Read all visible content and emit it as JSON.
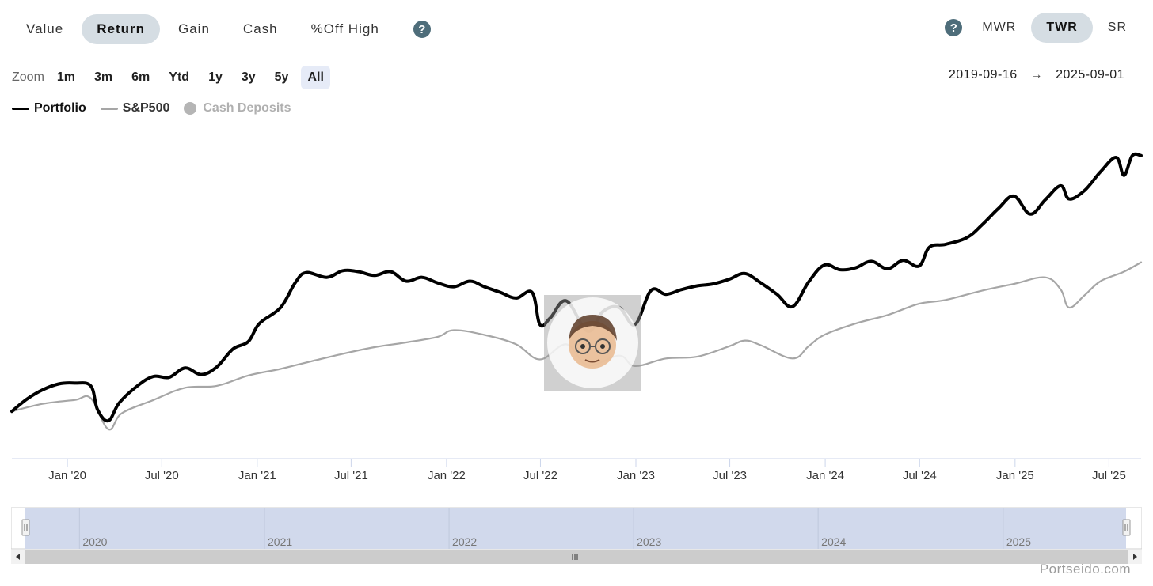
{
  "tabs": [
    "Value",
    "Return",
    "Gain",
    "Cash",
    "%Off High"
  ],
  "active_tab": "Return",
  "methods": [
    "MWR",
    "TWR",
    "SR"
  ],
  "active_method": "TWR",
  "zoom": {
    "label": "Zoom",
    "options": [
      "1m",
      "3m",
      "6m",
      "Ytd",
      "1y",
      "3y",
      "5y",
      "All"
    ],
    "active": "All"
  },
  "range": {
    "from": "2019-09-16",
    "arrow": "→",
    "to": "2025-09-01"
  },
  "legend": {
    "portfolio": "Portfolio",
    "sp500": "S&P500",
    "cash": "Cash Deposits"
  },
  "colors": {
    "portfolio": "#000000",
    "sp500": "#a6a6a6",
    "cash_disabled": "#b5b5b5",
    "axis": "#ccd6eb",
    "navigator_fill": "#d1d9ec"
  },
  "brand": "Portseido.com",
  "chart_data": {
    "type": "line",
    "x_axis_type": "date",
    "x_ticks": [
      "Jan '20",
      "Jul '20",
      "Jan '21",
      "Jul '21",
      "Jan '22",
      "Jul '22",
      "Jan '23",
      "Jul '23",
      "Jan '24",
      "Jul '24",
      "Jan '25",
      "Jul '25"
    ],
    "x_tick_dates": [
      "2020-01-01",
      "2020-07-01",
      "2021-01-01",
      "2021-07-01",
      "2022-01-01",
      "2022-07-01",
      "2023-01-01",
      "2023-07-01",
      "2024-01-01",
      "2024-07-01",
      "2025-01-01",
      "2025-07-01"
    ],
    "navigator_ticks": [
      "2020",
      "2021",
      "2022",
      "2023",
      "2024",
      "2025"
    ],
    "navigator_tick_dates": [
      "2020-01-01",
      "2021-01-01",
      "2022-01-01",
      "2023-01-01",
      "2024-01-01",
      "2025-01-01"
    ],
    "x_range": [
      "2019-09-16",
      "2025-09-01"
    ],
    "y_axis_labels": "none",
    "series": [
      {
        "name": "Portfolio",
        "points": [
          [
            "2019-09-16",
            0.0
          ],
          [
            "2019-10-15",
            1.3
          ],
          [
            "2019-11-15",
            2.3
          ],
          [
            "2019-12-15",
            2.9
          ],
          [
            "2020-01-15",
            3.0
          ],
          [
            "2020-02-15",
            2.7
          ],
          [
            "2020-02-28",
            0.2
          ],
          [
            "2020-03-20",
            -1.0
          ],
          [
            "2020-04-10",
            0.9
          ],
          [
            "2020-05-15",
            2.7
          ],
          [
            "2020-06-15",
            3.7
          ],
          [
            "2020-07-15",
            3.6
          ],
          [
            "2020-08-15",
            4.6
          ],
          [
            "2020-09-15",
            3.9
          ],
          [
            "2020-10-15",
            4.7
          ],
          [
            "2020-11-15",
            6.6
          ],
          [
            "2020-12-15",
            7.4
          ],
          [
            "2021-01-05",
            9.3
          ],
          [
            "2021-02-15",
            11.0
          ],
          [
            "2021-03-15",
            13.6
          ],
          [
            "2021-04-05",
            14.7
          ],
          [
            "2021-05-15",
            14.2
          ],
          [
            "2021-06-15",
            14.9
          ],
          [
            "2021-07-15",
            14.8
          ],
          [
            "2021-08-15",
            14.4
          ],
          [
            "2021-09-15",
            14.8
          ],
          [
            "2021-10-15",
            13.8
          ],
          [
            "2021-11-15",
            14.2
          ],
          [
            "2021-12-15",
            13.6
          ],
          [
            "2022-01-15",
            13.2
          ],
          [
            "2022-02-15",
            13.8
          ],
          [
            "2022-03-15",
            13.2
          ],
          [
            "2022-04-15",
            12.6
          ],
          [
            "2022-05-15",
            12.0
          ],
          [
            "2022-06-15",
            12.6
          ],
          [
            "2022-06-30",
            9.2
          ],
          [
            "2022-07-20",
            9.9
          ],
          [
            "2022-08-20",
            11.7
          ],
          [
            "2022-09-30",
            8.5
          ],
          [
            "2022-10-30",
            10.6
          ],
          [
            "2022-11-30",
            11.0
          ],
          [
            "2022-12-30",
            9.2
          ],
          [
            "2023-01-30",
            12.8
          ],
          [
            "2023-02-28",
            12.4
          ],
          [
            "2023-03-30",
            12.9
          ],
          [
            "2023-04-30",
            13.3
          ],
          [
            "2023-05-30",
            13.5
          ],
          [
            "2023-06-30",
            14.0
          ],
          [
            "2023-07-30",
            14.6
          ],
          [
            "2023-08-30",
            13.6
          ],
          [
            "2023-09-30",
            12.4
          ],
          [
            "2023-10-30",
            11.1
          ],
          [
            "2023-11-30",
            13.7
          ],
          [
            "2023-12-30",
            15.5
          ],
          [
            "2024-01-30",
            15.0
          ],
          [
            "2024-02-28",
            15.2
          ],
          [
            "2024-03-30",
            15.9
          ],
          [
            "2024-04-30",
            15.1
          ],
          [
            "2024-05-30",
            16.0
          ],
          [
            "2024-06-30",
            15.4
          ],
          [
            "2024-07-20",
            17.4
          ],
          [
            "2024-08-20",
            17.7
          ],
          [
            "2024-09-30",
            18.4
          ],
          [
            "2024-10-30",
            19.8
          ],
          [
            "2024-11-30",
            21.5
          ],
          [
            "2024-12-30",
            22.8
          ],
          [
            "2025-01-30",
            20.9
          ],
          [
            "2025-02-28",
            22.4
          ],
          [
            "2025-03-30",
            23.9
          ],
          [
            "2025-04-15",
            22.5
          ],
          [
            "2025-05-15",
            23.4
          ],
          [
            "2025-06-15",
            25.4
          ],
          [
            "2025-07-15",
            26.9
          ],
          [
            "2025-07-30",
            25.0
          ],
          [
            "2025-08-15",
            27.1
          ],
          [
            "2025-09-01",
            27.1
          ]
        ]
      },
      {
        "name": "S&P500",
        "points": [
          [
            "2019-09-16",
            0.0
          ],
          [
            "2019-11-15",
            0.8
          ],
          [
            "2020-01-15",
            1.2
          ],
          [
            "2020-02-15",
            1.4
          ],
          [
            "2020-03-20",
            -1.9
          ],
          [
            "2020-04-15",
            -0.2
          ],
          [
            "2020-06-15",
            1.2
          ],
          [
            "2020-08-15",
            2.5
          ],
          [
            "2020-10-15",
            2.7
          ],
          [
            "2020-12-15",
            3.8
          ],
          [
            "2021-02-15",
            4.5
          ],
          [
            "2021-04-15",
            5.3
          ],
          [
            "2021-06-15",
            6.1
          ],
          [
            "2021-08-15",
            6.8
          ],
          [
            "2021-10-15",
            7.3
          ],
          [
            "2021-12-15",
            7.9
          ],
          [
            "2022-01-15",
            8.6
          ],
          [
            "2022-03-15",
            8.1
          ],
          [
            "2022-05-15",
            7.1
          ],
          [
            "2022-06-30",
            5.5
          ],
          [
            "2022-08-20",
            7.1
          ],
          [
            "2022-09-30",
            4.9
          ],
          [
            "2022-11-30",
            5.9
          ],
          [
            "2022-12-30",
            4.8
          ],
          [
            "2023-02-28",
            5.6
          ],
          [
            "2023-04-30",
            5.8
          ],
          [
            "2023-06-30",
            6.9
          ],
          [
            "2023-07-30",
            7.5
          ],
          [
            "2023-08-30",
            7.0
          ],
          [
            "2023-10-30",
            5.6
          ],
          [
            "2023-11-30",
            6.9
          ],
          [
            "2023-12-30",
            8.1
          ],
          [
            "2024-02-28",
            9.3
          ],
          [
            "2024-04-30",
            10.2
          ],
          [
            "2024-06-30",
            11.4
          ],
          [
            "2024-08-20",
            11.8
          ],
          [
            "2024-10-30",
            12.8
          ],
          [
            "2024-12-30",
            13.5
          ],
          [
            "2025-02-28",
            14.2
          ],
          [
            "2025-03-30",
            12.9
          ],
          [
            "2025-04-15",
            11.0
          ],
          [
            "2025-05-15",
            12.3
          ],
          [
            "2025-06-15",
            13.8
          ],
          [
            "2025-07-30",
            14.8
          ],
          [
            "2025-09-01",
            15.8
          ]
        ]
      }
    ]
  }
}
